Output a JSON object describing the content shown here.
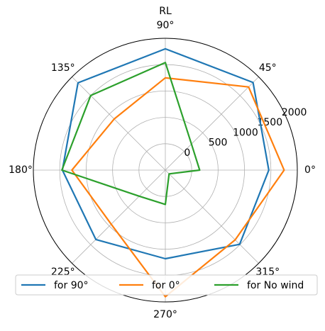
{
  "chart_data": {
    "type": "polar",
    "title": "RL",
    "theta": [
      0,
      45,
      90,
      135,
      180,
      225,
      270,
      315
    ],
    "xticks": [
      {
        "value": 0,
        "label": "0°"
      },
      {
        "value": 45,
        "label": "45°"
      },
      {
        "value": 90,
        "label": "90°"
      },
      {
        "value": 135,
        "label": "135°"
      },
      {
        "value": 180,
        "label": "180°"
      },
      {
        "value": 225,
        "label": "225°"
      },
      {
        "value": 270,
        "label": "270°"
      },
      {
        "value": 315,
        "label": "315°"
      }
    ],
    "rlim": [
      -500,
      2000
    ],
    "rticks": [
      0,
      500,
      1000,
      1500,
      2000
    ],
    "grid": true,
    "legend": "lower center",
    "series": [
      {
        "name": "for 90°",
        "color": "#1f77b4",
        "values": [
          1460,
          1850,
          1800,
          1840,
          1450,
          1360,
          1180,
          1490
        ]
      },
      {
        "name": "for 0°",
        "color": "#ff7f0e",
        "values": [
          1750,
          1730,
          1250,
          870,
          1270,
          950,
          1900,
          1370
        ]
      },
      {
        "name": "for No wind",
        "color": "#2ca02c",
        "values": [
          150,
          200,
          1540,
          1500,
          1460,
          200,
          150,
          -400
        ]
      }
    ]
  }
}
